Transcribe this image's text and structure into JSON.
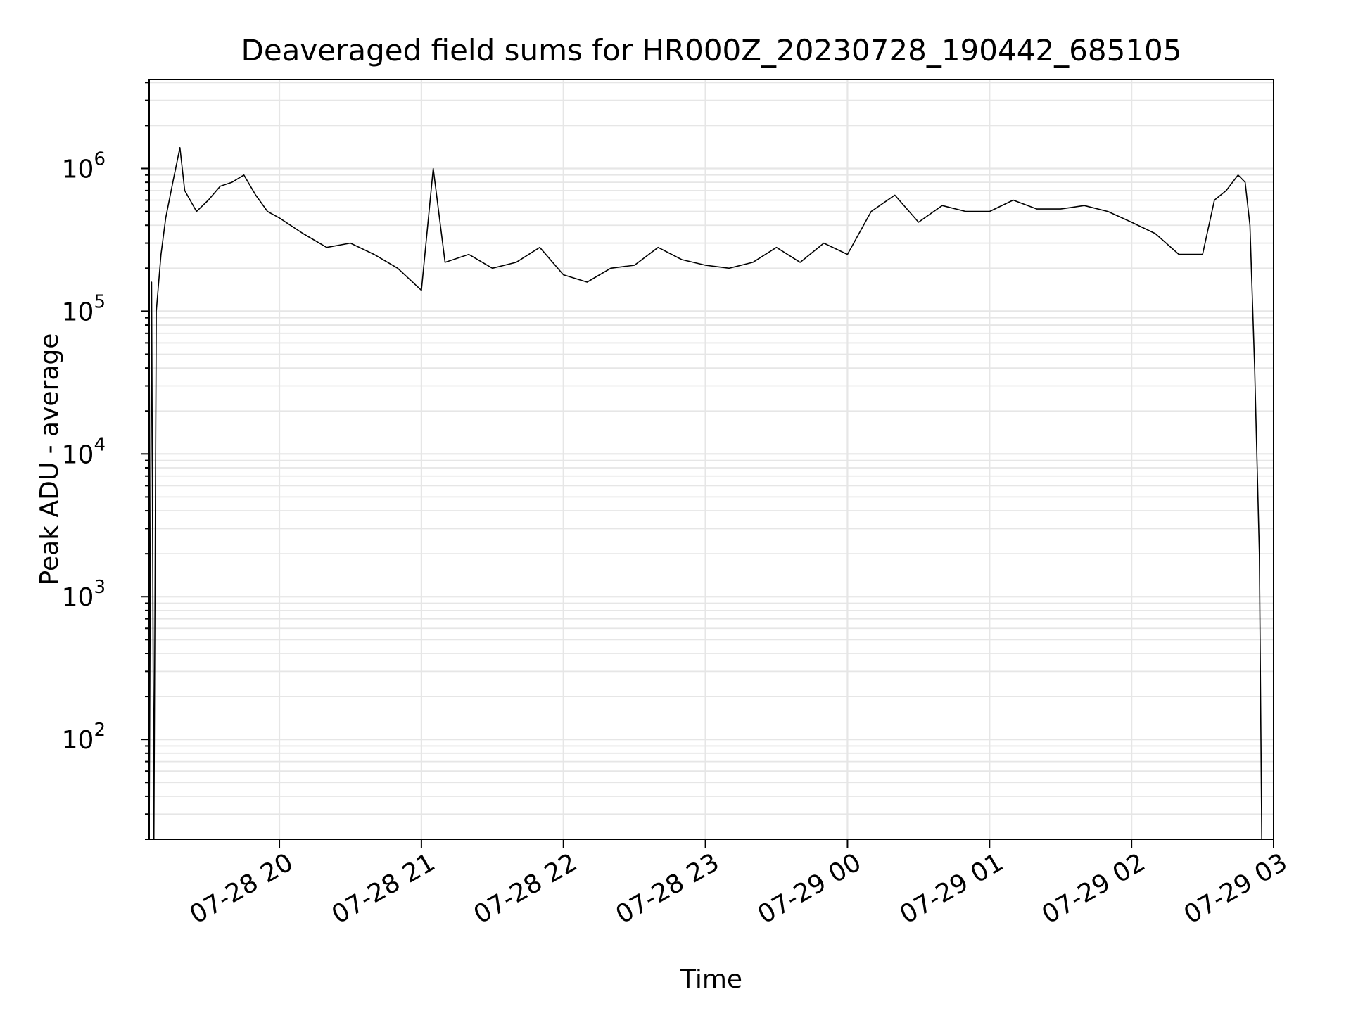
{
  "chart_data": {
    "type": "line",
    "title": "Deaveraged field sums for HR000Z_20230728_190442_685105",
    "xlabel": "Time",
    "ylabel": "Peak ADU - average",
    "yscale": "log",
    "grid": true,
    "xlim": [
      "07-28 19:05",
      "07-29 03:00"
    ],
    "ylim": [
      20,
      4200000
    ],
    "x_tick_labels": [
      "07-28 20",
      "07-28 21",
      "07-28 22",
      "07-28 23",
      "07-29 00",
      "07-29 01",
      "07-29 02",
      "07-29 03"
    ],
    "y_tick_labels": [
      {
        "base": "10",
        "exp": "2",
        "value": 100
      },
      {
        "base": "10",
        "exp": "3",
        "value": 1000
      },
      {
        "base": "10",
        "exp": "4",
        "value": 10000
      },
      {
        "base": "10",
        "exp": "5",
        "value": 100000
      },
      {
        "base": "10",
        "exp": "6",
        "value": 1000000
      }
    ],
    "series": [
      {
        "color": "#000000",
        "x": [
          "07-28 19:05",
          "07-28 19:06",
          "07-28 19:07",
          "07-28 19:08",
          "07-28 19:10",
          "07-28 19:12",
          "07-28 19:15",
          "07-28 19:18",
          "07-28 19:20",
          "07-28 19:25",
          "07-28 19:30",
          "07-28 19:35",
          "07-28 19:40",
          "07-28 19:45",
          "07-28 19:50",
          "07-28 19:55",
          "07-28 20:00",
          "07-28 20:10",
          "07-28 20:20",
          "07-28 20:30",
          "07-28 20:40",
          "07-28 20:50",
          "07-28 21:00",
          "07-28 21:05",
          "07-28 21:10",
          "07-28 21:20",
          "07-28 21:30",
          "07-28 21:40",
          "07-28 21:50",
          "07-28 22:00",
          "07-28 22:10",
          "07-28 22:20",
          "07-28 22:30",
          "07-28 22:40",
          "07-28 22:50",
          "07-28 23:00",
          "07-28 23:10",
          "07-28 23:20",
          "07-28 23:30",
          "07-28 23:40",
          "07-28 23:50",
          "07-29 00:00",
          "07-29 00:10",
          "07-29 00:20",
          "07-29 00:30",
          "07-29 00:40",
          "07-29 00:50",
          "07-29 01:00",
          "07-29 01:10",
          "07-29 01:20",
          "07-29 01:30",
          "07-29 01:40",
          "07-29 01:50",
          "07-29 02:00",
          "07-29 02:10",
          "07-29 02:20",
          "07-29 02:30",
          "07-29 02:35",
          "07-29 02:40",
          "07-29 02:45",
          "07-29 02:48",
          "07-29 02:50",
          "07-29 02:52",
          "07-29 02:54",
          "07-29 02:55"
        ],
        "y": [
          20,
          160000,
          20,
          100000,
          250000,
          450000,
          800000,
          1400000,
          700000,
          500000,
          600000,
          750000,
          800000,
          900000,
          650000,
          500000,
          450000,
          350000,
          280000,
          300000,
          250000,
          200000,
          140000,
          1000000,
          220000,
          250000,
          200000,
          220000,
          280000,
          180000,
          160000,
          200000,
          210000,
          280000,
          230000,
          210000,
          200000,
          220000,
          280000,
          220000,
          300000,
          250000,
          500000,
          650000,
          420000,
          550000,
          500000,
          500000,
          600000,
          520000,
          520000,
          550000,
          500000,
          420000,
          350000,
          250000,
          250000,
          600000,
          700000,
          900000,
          800000,
          400000,
          40000,
          2000,
          20
        ]
      }
    ]
  }
}
